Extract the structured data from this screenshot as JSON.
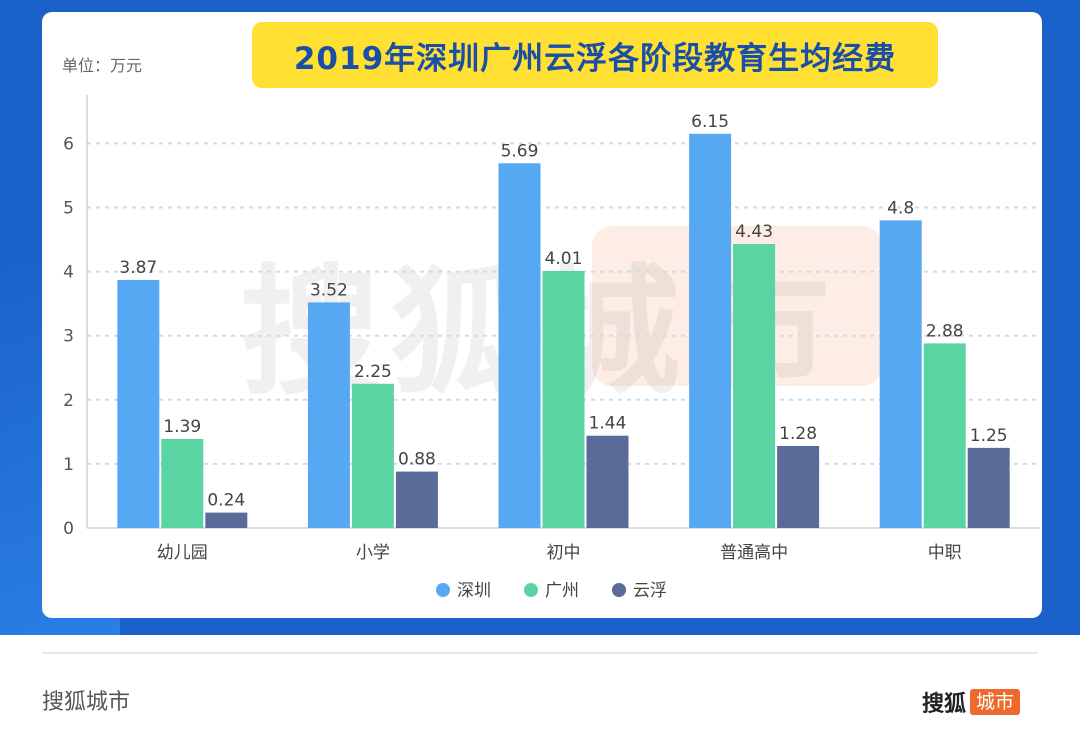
{
  "chart_data": {
    "type": "bar",
    "title": "2019年深圳广州云浮各阶段教育生均经费",
    "unit_label": "单位：万元",
    "categories": [
      "幼儿园",
      "小学",
      "初中",
      "普通高中",
      "中职"
    ],
    "series": [
      {
        "name": "深圳",
        "color": "#57a8f2",
        "values": [
          3.87,
          3.52,
          5.69,
          6.15,
          4.8
        ]
      },
      {
        "name": "广州",
        "color": "#5ad4a2",
        "values": [
          1.39,
          2.25,
          4.01,
          4.43,
          2.88
        ]
      },
      {
        "name": "云浮",
        "color": "#5a6b99",
        "values": [
          0.24,
          0.88,
          1.44,
          1.28,
          1.25
        ]
      }
    ],
    "value_labels": [
      [
        "3.87",
        "3.52",
        "5.69",
        "6.15",
        "4.8"
      ],
      [
        "1.39",
        "2.25",
        "4.01",
        "4.43",
        "2.88"
      ],
      [
        "0.24",
        "0.88",
        "1.44",
        "1.28",
        "1.25"
      ]
    ],
    "y_ticks": [
      0,
      1,
      2,
      3,
      4,
      5,
      6
    ],
    "ylim": [
      0,
      6.5
    ],
    "grid": true,
    "legend_position": "bottom-center"
  },
  "watermark": {
    "text": "搜狐城市"
  },
  "footer": {
    "left_text": "搜狐城市",
    "brand_main": "搜狐",
    "brand_tag": "城市"
  }
}
